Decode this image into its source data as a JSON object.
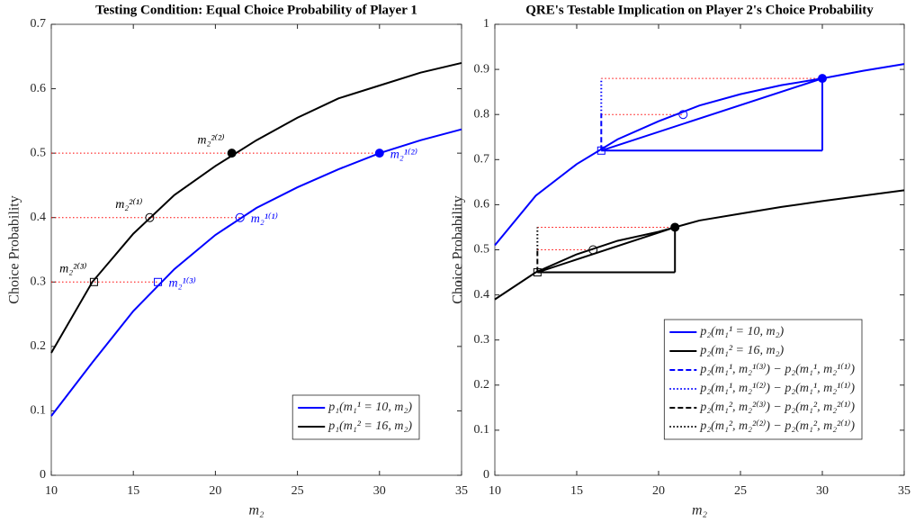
{
  "chart_data": [
    {
      "type": "line",
      "title": "Testing Condition: Equal Choice Probability of Player 1",
      "x_label": "m₂",
      "y_label": "Choice Probability",
      "xlim": [
        10,
        35
      ],
      "xticks": [
        10,
        15,
        20,
        25,
        30,
        35
      ],
      "ylim": [
        0,
        0.7
      ],
      "yticks": [
        0,
        0.1,
        0.2,
        0.3,
        0.4,
        0.5,
        0.6,
        0.7
      ],
      "legend": "lower right",
      "series": [
        {
          "name": "p₁(m₁¹ = 10, m₂)",
          "color": "#0000ff",
          "style": "solid",
          "x": [
            10,
            12.5,
            15,
            17.5,
            20,
            22.5,
            25,
            27.5,
            30,
            32.5,
            35
          ],
          "values": [
            0.092,
            0.175,
            0.255,
            0.32,
            0.373,
            0.415,
            0.447,
            0.475,
            0.5,
            0.52,
            0.537
          ]
        },
        {
          "name": "p₁(m₁² = 16, m₂)",
          "color": "#000000",
          "style": "solid",
          "x": [
            10,
            12.5,
            15,
            17.5,
            20,
            22.5,
            25,
            27.5,
            30,
            32.5,
            35
          ],
          "values": [
            0.19,
            0.3,
            0.375,
            0.435,
            0.48,
            0.52,
            0.555,
            0.585,
            0.605,
            0.625,
            0.64
          ]
        }
      ],
      "segments": [
        {
          "x": [
            10,
            30
          ],
          "y": [
            0.5,
            0.5
          ],
          "color": "#ff0000",
          "style": "dotted"
        },
        {
          "x": [
            10,
            21.5
          ],
          "y": [
            0.4,
            0.4
          ],
          "color": "#ff0000",
          "style": "dotted"
        },
        {
          "x": [
            10,
            16.5
          ],
          "y": [
            0.3,
            0.3
          ],
          "color": "#ff0000",
          "style": "dotted"
        }
      ],
      "points": [
        {
          "x": 30,
          "y": 0.5,
          "color": "#0000ff",
          "marker": "filled",
          "label": "m₂¹⁽²⁾",
          "label_side": "right"
        },
        {
          "x": 21.5,
          "y": 0.4,
          "color": "#0000ff",
          "marker": "circle",
          "label": "m₂¹⁽¹⁾",
          "label_side": "right"
        },
        {
          "x": 16.5,
          "y": 0.3,
          "color": "#0000ff",
          "marker": "square",
          "label": "m₂¹⁽³⁾",
          "label_side": "right"
        },
        {
          "x": 21,
          "y": 0.5,
          "color": "#000000",
          "marker": "filled",
          "label": "m₂²⁽²⁾",
          "label_side": "left"
        },
        {
          "x": 16,
          "y": 0.4,
          "color": "#000000",
          "marker": "circle",
          "label": "m₂²⁽¹⁾",
          "label_side": "left"
        },
        {
          "x": 12.6,
          "y": 0.3,
          "color": "#000000",
          "marker": "square",
          "label": "m₂²⁽³⁾",
          "label_side": "left"
        }
      ]
    },
    {
      "type": "line",
      "title": "QRE's Testable Implication on Player 2's Choice Probability",
      "x_label": "m₂",
      "y_label": "Choice Probability",
      "xlim": [
        10,
        35
      ],
      "xticks": [
        10,
        15,
        20,
        25,
        30,
        35
      ],
      "ylim": [
        0,
        1
      ],
      "yticks": [
        0,
        0.1,
        0.2,
        0.3,
        0.4,
        0.5,
        0.6,
        0.7,
        0.8,
        0.9,
        1
      ],
      "legend": "lower right",
      "series": [
        {
          "name": "p₂(m₁¹ = 10, m₂)",
          "color": "#0000ff",
          "style": "solid",
          "x": [
            10,
            12.5,
            15,
            17.5,
            20,
            22.5,
            25,
            27.5,
            30,
            32.5,
            35
          ],
          "values": [
            0.51,
            0.62,
            0.69,
            0.745,
            0.785,
            0.82,
            0.845,
            0.865,
            0.88,
            0.897,
            0.912
          ]
        },
        {
          "name": "p₂(m₁² = 16, m₂)",
          "color": "#000000",
          "style": "solid",
          "x": [
            10,
            12.5,
            15,
            17.5,
            20,
            22.5,
            25,
            27.5,
            30,
            32.5,
            35
          ],
          "values": [
            0.39,
            0.45,
            0.49,
            0.52,
            0.54,
            0.565,
            0.58,
            0.595,
            0.608,
            0.62,
            0.632
          ]
        },
        {
          "name": "p₂(m₁¹, m₂¹⁽³⁾) − p₂(m₁¹, m₂¹⁽¹⁾)",
          "color": "#0000ff",
          "style": "dashed",
          "x": [
            16.5,
            16.5
          ],
          "values": [
            0.72,
            0.8
          ]
        },
        {
          "name": "p₂(m₁¹, m₂¹⁽²⁾) − p₂(m₁¹, m₂¹⁽¹⁾)",
          "color": "#0000ff",
          "style": "dotted",
          "x": [
            16.5,
            16.5
          ],
          "values": [
            0.8,
            0.88
          ]
        },
        {
          "name": "p₂(m₁², m₂²⁽³⁾) − p₂(m₁², m₂²⁽¹⁾)",
          "color": "#000000",
          "style": "dashed",
          "x": [
            12.6,
            12.6
          ],
          "values": [
            0.45,
            0.5
          ]
        },
        {
          "name": "p₂(m₁², m₂²⁽²⁾) − p₂(m₁², m₂²⁽¹⁾)",
          "color": "#000000",
          "style": "dotted",
          "x": [
            12.6,
            12.6
          ],
          "values": [
            0.5,
            0.55
          ]
        }
      ],
      "segments": [
        {
          "x": [
            16.5,
            30
          ],
          "y": [
            0.88,
            0.88
          ],
          "color": "#ff0000",
          "style": "dotted"
        },
        {
          "x": [
            16.5,
            21.5
          ],
          "y": [
            0.8,
            0.8
          ],
          "color": "#ff0000",
          "style": "dotted"
        },
        {
          "x": [
            12.6,
            21
          ],
          "y": [
            0.55,
            0.55
          ],
          "color": "#ff0000",
          "style": "dotted"
        },
        {
          "x": [
            12.6,
            16
          ],
          "y": [
            0.5,
            0.5
          ],
          "color": "#ff0000",
          "style": "dotted"
        },
        {
          "x": [
            16.5,
            30
          ],
          "y": [
            0.72,
            0.88
          ],
          "color": "#0000ff",
          "style": "solid"
        },
        {
          "x": [
            16.5,
            30
          ],
          "y": [
            0.72,
            0.72
          ],
          "color": "#0000ff",
          "style": "solid"
        },
        {
          "x": [
            30,
            30
          ],
          "y": [
            0.72,
            0.88
          ],
          "color": "#0000ff",
          "style": "solid"
        },
        {
          "x": [
            12.6,
            21
          ],
          "y": [
            0.45,
            0.55
          ],
          "color": "#000000",
          "style": "solid"
        },
        {
          "x": [
            12.6,
            21
          ],
          "y": [
            0.45,
            0.45
          ],
          "color": "#000000",
          "style": "solid"
        },
        {
          "x": [
            21,
            21
          ],
          "y": [
            0.45,
            0.55
          ],
          "color": "#000000",
          "style": "solid"
        }
      ],
      "points": [
        {
          "x": 16.5,
          "y": 0.72,
          "color": "#0000ff",
          "marker": "square"
        },
        {
          "x": 21.5,
          "y": 0.8,
          "color": "#0000ff",
          "marker": "circle"
        },
        {
          "x": 30,
          "y": 0.88,
          "color": "#0000ff",
          "marker": "filled"
        },
        {
          "x": 12.6,
          "y": 0.45,
          "color": "#000000",
          "marker": "square"
        },
        {
          "x": 16,
          "y": 0.5,
          "color": "#000000",
          "marker": "circle"
        },
        {
          "x": 21,
          "y": 0.55,
          "color": "#000000",
          "marker": "filled"
        }
      ]
    }
  ]
}
